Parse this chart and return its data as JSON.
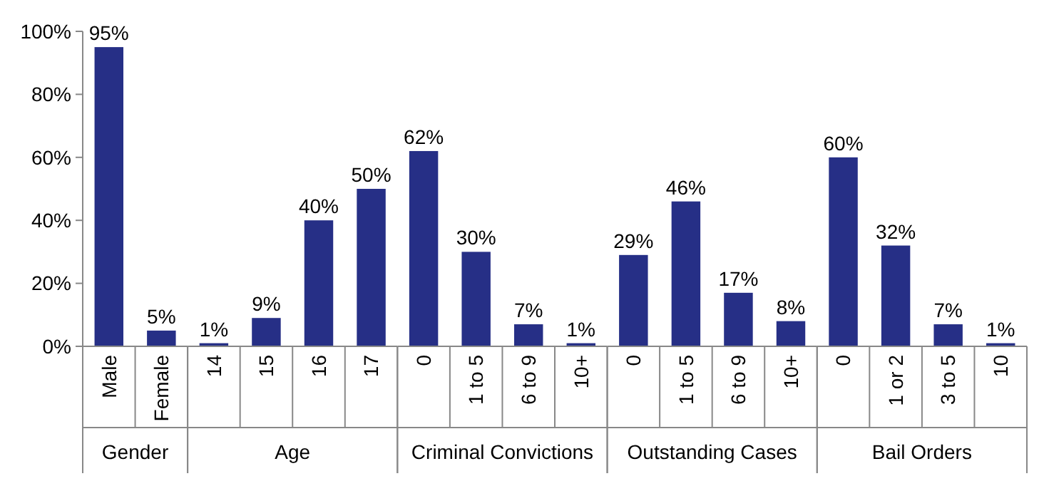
{
  "chart_data": [
    {
      "type": "bar",
      "xlabel": "Gender",
      "categories": [
        "Male",
        "Female"
      ],
      "values": [
        95,
        5
      ],
      "value_labels": [
        "95%",
        "5%"
      ],
      "color": "#262f86",
      "ylim": [
        0,
        100
      ],
      "yticks": [
        {
          "value": 0,
          "label": "0%"
        },
        {
          "value": 20,
          "label": "20%"
        },
        {
          "value": 40,
          "label": "40%"
        },
        {
          "value": 60,
          "label": "60%"
        },
        {
          "value": 80,
          "label": "80%"
        },
        {
          "value": 100,
          "label": "100%"
        }
      ]
    },
    {
      "type": "bar",
      "xlabel": "Age",
      "categories": [
        "14",
        "15",
        "16",
        "17"
      ],
      "values": [
        1,
        9,
        40,
        50
      ],
      "value_labels": [
        "1%",
        "9%",
        "40%",
        "50%"
      ],
      "color": "#262f86",
      "ylim": [
        0,
        100
      ],
      "tick_labels": "x"
    },
    {
      "type": "bar",
      "xlabel": "Criminal Convictions",
      "categories": [
        "0",
        "1 to 5",
        "6 to 9",
        "10+"
      ],
      "values": [
        62,
        30,
        7,
        1
      ],
      "value_labels": [
        "62%",
        "30%",
        "7%",
        "1%"
      ],
      "color": "#262f86",
      "ylim": [
        0,
        100
      ],
      "tick_labels": "x"
    },
    {
      "type": "bar",
      "xlabel": "Outstanding Cases",
      "categories": [
        "0",
        "1 to 5",
        "6 to 9",
        "10+"
      ],
      "values": [
        29,
        46,
        17,
        8
      ],
      "value_labels": [
        "29%",
        "46%",
        "17%",
        "8%"
      ],
      "color": "#262f86",
      "ylim": [
        0,
        100
      ],
      "tick_labels": "x"
    },
    {
      "type": "bar",
      "xlabel": "Bail Orders",
      "categories": [
        "0",
        "1 or 2",
        "3 to 5",
        "10"
      ],
      "values": [
        60,
        32,
        7,
        1
      ],
      "value_labels": [
        "60%",
        "32%",
        "7%",
        "1%"
      ],
      "color": "#262f86",
      "ylim": [
        0,
        100
      ],
      "tick_labels": "x"
    }
  ]
}
